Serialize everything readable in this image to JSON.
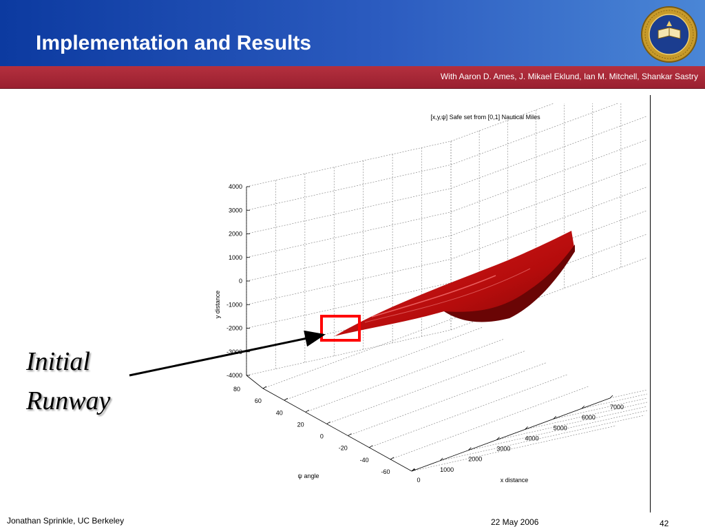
{
  "slide": {
    "title": "Implementation and Results",
    "authors": "With Aaron D. Ames, J. Mikael Eklund, Ian M. Mitchell, Shankar Sastry",
    "seal_text": "THE UNIVERSITY OF CALIFORNIA SEAL",
    "seal_year": "1868",
    "label_line1": "Initial",
    "label_line2": "Runway",
    "footer_left": "Jonathan Sprinkle, UC Berkeley",
    "footer_date": "22 May 2006",
    "page_number": "42"
  },
  "colors": {
    "header_blue": "#0c3aa0",
    "header_red": "#a02634",
    "surface_red": "#cc1010",
    "marker_red": "#ff0000"
  },
  "chart_data": {
    "type": "surface3d",
    "title": "[x,y,ψ] Safe set from [0,1] Nautical Miles",
    "xlabel": "x distance",
    "ylabel": "y distance",
    "zlabel": "ψ angle",
    "x_ticks": [
      "0",
      "1000",
      "2000",
      "3000",
      "4000",
      "5000",
      "6000",
      "7000"
    ],
    "y_ticks": [
      "4000",
      "3000",
      "2000",
      "1000",
      "0",
      "-1000",
      "-2000",
      "-3000",
      "-4000"
    ],
    "psi_ticks": [
      "80",
      "60",
      "40",
      "20",
      "0",
      "-20",
      "-40",
      "-60"
    ],
    "xlim": [
      0,
      7000
    ],
    "ylim": [
      -4000,
      4000
    ],
    "psilim": [
      -60,
      80
    ],
    "grid": true,
    "annotation": "Initial Runway"
  }
}
